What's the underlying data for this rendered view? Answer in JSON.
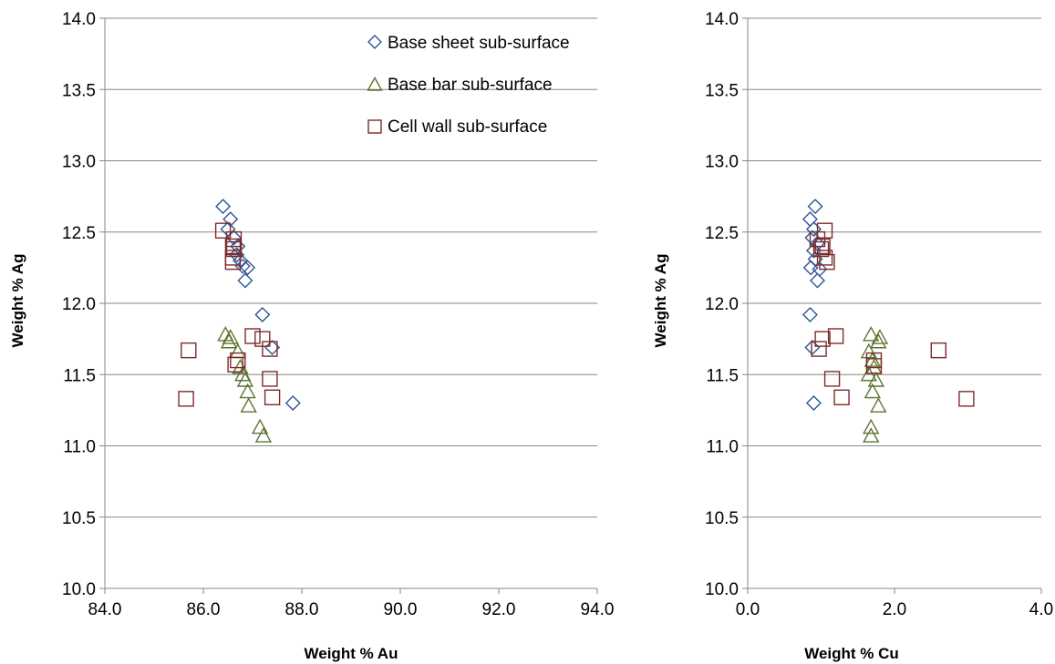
{
  "colors": {
    "base_sheet": "#2f5597",
    "base_bar": "#5f7530",
    "cell_wall": "#7b2c2c",
    "gridline": "#868686",
    "axis": "#868686"
  },
  "chart_data": [
    {
      "type": "scatter",
      "xlabel": "Weight % Au",
      "ylabel": "Weight % Ag",
      "xlim": [
        84.0,
        94.0
      ],
      "ylim": [
        10.0,
        14.0
      ],
      "x_ticks": [
        "84.0",
        "86.0",
        "88.0",
        "90.0",
        "92.0",
        "94.0"
      ],
      "y_ticks": [
        "10.0",
        "10.5",
        "11.0",
        "11.5",
        "12.0",
        "12.5",
        "13.0",
        "13.5",
        "14.0"
      ],
      "grid": "horizontal",
      "legend_position": "top-right",
      "series": [
        {
          "name": "Base sheet sub-surface",
          "marker": "diamond",
          "color": "#2f5597",
          "points": [
            [
              86.4,
              12.68
            ],
            [
              86.55,
              12.59
            ],
            [
              86.5,
              12.52
            ],
            [
              86.62,
              12.46
            ],
            [
              86.7,
              12.4
            ],
            [
              86.68,
              12.34
            ],
            [
              86.75,
              12.3
            ],
            [
              86.8,
              12.26
            ],
            [
              86.9,
              12.25
            ],
            [
              86.85,
              12.16
            ],
            [
              87.2,
              11.92
            ],
            [
              87.4,
              11.69
            ],
            [
              87.82,
              11.3
            ]
          ]
        },
        {
          "name": "Base bar sub-surface",
          "marker": "triangle",
          "color": "#5f7530",
          "points": [
            [
              86.45,
              11.78
            ],
            [
              86.55,
              11.76
            ],
            [
              86.52,
              11.73
            ],
            [
              86.7,
              11.66
            ],
            [
              86.75,
              11.55
            ],
            [
              86.8,
              11.5
            ],
            [
              86.85,
              11.46
            ],
            [
              86.9,
              11.38
            ],
            [
              86.92,
              11.28
            ],
            [
              87.15,
              11.13
            ],
            [
              87.22,
              11.07
            ]
          ]
        },
        {
          "name": "Cell wall sub-surface",
          "marker": "square",
          "color": "#7b2c2c",
          "points": [
            [
              86.4,
              12.51
            ],
            [
              86.62,
              12.45
            ],
            [
              86.6,
              12.4
            ],
            [
              86.62,
              12.38
            ],
            [
              86.6,
              12.32
            ],
            [
              86.6,
              12.29
            ],
            [
              87.0,
              11.77
            ],
            [
              87.2,
              11.75
            ],
            [
              87.35,
              11.68
            ],
            [
              85.7,
              11.67
            ],
            [
              86.7,
              11.6
            ],
            [
              86.65,
              11.57
            ],
            [
              87.35,
              11.47
            ],
            [
              87.4,
              11.34
            ],
            [
              85.65,
              11.33
            ]
          ]
        }
      ]
    },
    {
      "type": "scatter",
      "xlabel": "Weight % Cu",
      "ylabel": "Weight % Ag",
      "xlim": [
        0.0,
        4.0
      ],
      "ylim": [
        10.0,
        14.0
      ],
      "x_ticks": [
        "0.0",
        "2.0",
        "4.0"
      ],
      "y_ticks": [
        "10.0",
        "10.5",
        "11.0",
        "11.5",
        "12.0",
        "12.5",
        "13.0",
        "13.5",
        "14.0"
      ],
      "grid": "horizontal",
      "legend_position": "none",
      "series": [
        {
          "marker": "diamond",
          "color": "#2f5597",
          "points": [
            [
              0.92,
              12.68
            ],
            [
              0.85,
              12.59
            ],
            [
              0.9,
              12.52
            ],
            [
              0.88,
              12.46
            ],
            [
              0.95,
              12.42
            ],
            [
              0.9,
              12.37
            ],
            [
              0.92,
              12.31
            ],
            [
              0.86,
              12.25
            ],
            [
              0.98,
              12.24
            ],
            [
              0.95,
              12.16
            ],
            [
              0.85,
              11.92
            ],
            [
              0.88,
              11.69
            ],
            [
              0.9,
              11.3
            ]
          ]
        },
        {
          "marker": "triangle",
          "color": "#5f7530",
          "points": [
            [
              1.68,
              11.78
            ],
            [
              1.8,
              11.76
            ],
            [
              1.78,
              11.73
            ],
            [
              1.65,
              11.66
            ],
            [
              1.7,
              11.6
            ],
            [
              1.72,
              11.55
            ],
            [
              1.65,
              11.5
            ],
            [
              1.75,
              11.46
            ],
            [
              1.7,
              11.38
            ],
            [
              1.78,
              11.28
            ],
            [
              1.68,
              11.13
            ],
            [
              1.68,
              11.07
            ]
          ]
        },
        {
          "marker": "square",
          "color": "#7b2c2c",
          "points": [
            [
              1.05,
              12.51
            ],
            [
              0.95,
              12.45
            ],
            [
              1.02,
              12.4
            ],
            [
              1.0,
              12.38
            ],
            [
              1.05,
              12.32
            ],
            [
              1.08,
              12.29
            ],
            [
              1.2,
              11.77
            ],
            [
              1.02,
              11.75
            ],
            [
              0.97,
              11.68
            ],
            [
              2.6,
              11.67
            ],
            [
              1.72,
              11.6
            ],
            [
              1.72,
              11.56
            ],
            [
              1.15,
              11.47
            ],
            [
              1.28,
              11.34
            ],
            [
              2.98,
              11.33
            ]
          ]
        }
      ]
    }
  ]
}
